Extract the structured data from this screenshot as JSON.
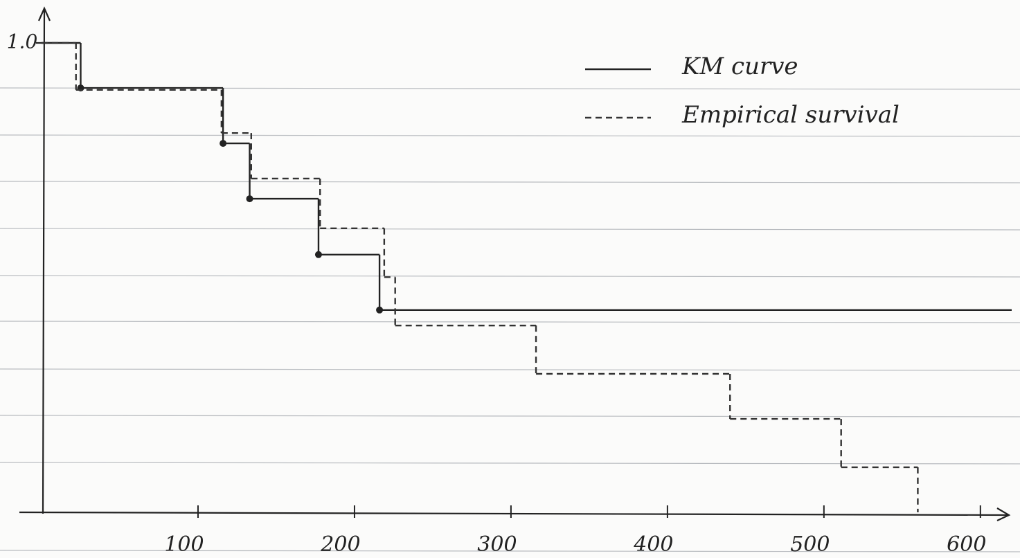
{
  "chart_data": {
    "type": "step",
    "xlim": [
      0,
      620
    ],
    "ylim": [
      0,
      1
    ],
    "xticks": [
      100,
      200,
      300,
      400,
      500,
      600
    ],
    "yticks": [
      {
        "value": 1,
        "label": "1.0"
      }
    ],
    "legend": "top-right",
    "series": [
      {
        "name": "KM curve",
        "color": "#222222",
        "style": "solid",
        "markers": true,
        "x": [
          0,
          25,
          116,
          133,
          177,
          216
        ],
        "values": [
          1.0,
          0.904,
          0.786,
          0.668,
          0.549,
          0.431
        ]
      },
      {
        "name": "Empirical survival",
        "color": "#333333",
        "style": "dashed",
        "markers": false,
        "x": [
          0,
          22,
          115,
          134,
          178,
          219,
          226,
          316,
          440,
          511,
          560
        ],
        "values": [
          1.0,
          0.9,
          0.808,
          0.711,
          0.605,
          0.501,
          0.398,
          0.295,
          0.199,
          0.096,
          0
        ]
      }
    ]
  }
}
